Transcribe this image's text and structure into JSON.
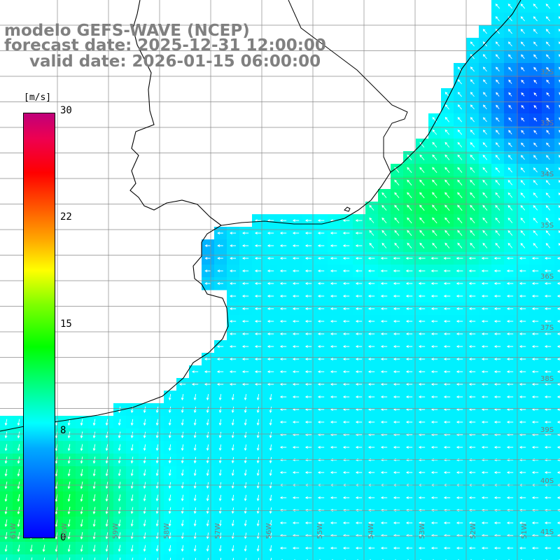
{
  "title": {
    "model": "modelo GEFS-WAVE (NCEP)",
    "forecast": "forecast date: 2025-12-31 12:00:00",
    "valid": "valid date: 2026-01-15 06:00:00"
  },
  "colorbar": {
    "units": "[m/s]",
    "ticks": [
      "30",
      "22",
      "15",
      "8",
      "0"
    ],
    "colors": [
      "#0000ff",
      "#00aaff",
      "#00ffff",
      "#00ff80",
      "#00ff00",
      "#ffff00",
      "#ff0000",
      "#c0007a"
    ]
  },
  "map": {
    "variable": "wind speed with direction arrows",
    "lat_labels": [
      "32S",
      "33S",
      "34S",
      "35S",
      "36S",
      "37S",
      "38S",
      "39S",
      "40S",
      "41S"
    ],
    "lon_labels": [
      "61W",
      "60W",
      "59W",
      "58W",
      "57W",
      "56W",
      "55W",
      "54W",
      "53W",
      "52W",
      "51W"
    ],
    "colors": {
      "land": "#ffffff",
      "coastline": "#000000",
      "grid": "#8a8a8a",
      "arrow": "#ffffff"
    }
  }
}
